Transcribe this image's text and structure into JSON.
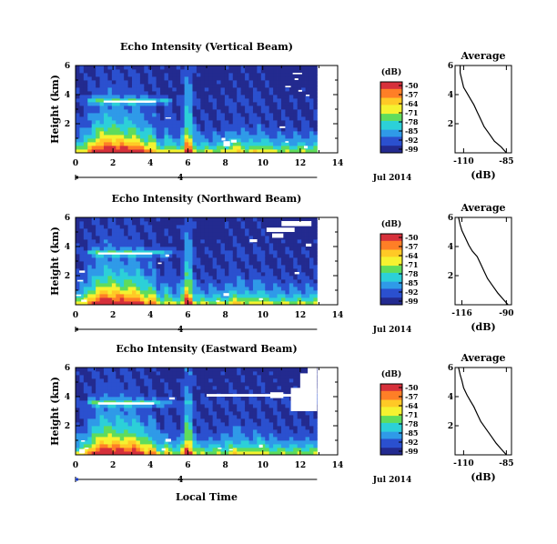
{
  "chart_data": {
    "type": "heatmap",
    "date_label": "Jul 2014",
    "date_day": "4",
    "shared_xlabel": "Local Time",
    "colorbar": {
      "unit": "(dB)",
      "ticks": [
        "-50",
        "-57",
        "-64",
        "-71",
        "-78",
        "-85",
        "-92",
        "-99"
      ],
      "colors": [
        "#d6303b",
        "#ff7f27",
        "#ffc926",
        "#f5f230",
        "#5fdc5c",
        "#2cd0d8",
        "#2f9ae8",
        "#2b50cf",
        "#232a8f"
      ]
    },
    "panels": [
      {
        "title": "Echo Intensity (Vertical Beam)",
        "ylabel": "Height (km)",
        "xlim": [
          0,
          14
        ],
        "ylim": [
          0,
          6
        ],
        "x_ticks": [
          "0",
          "2",
          "4",
          "6",
          "8",
          "10",
          "12",
          "14"
        ],
        "y_ticks": [
          "6",
          "4",
          "2"
        ],
        "average": {
          "title": "Average",
          "xlabel": "(dB)",
          "x_ticks": [
            "-110",
            "-85"
          ],
          "xlim": [
            -115,
            -82
          ],
          "y_ticks": [
            "6",
            "4",
            "2"
          ],
          "profile": [
            [
              -85,
              0.0
            ],
            [
              -88,
              0.4
            ],
            [
              -92,
              0.8
            ],
            [
              -95,
              1.3
            ],
            [
              -98,
              1.8
            ],
            [
              -100,
              2.3
            ],
            [
              -102,
              2.8
            ],
            [
              -104,
              3.3
            ],
            [
              -106,
              3.7
            ],
            [
              -108,
              4.1
            ],
            [
              -110,
              4.5
            ],
            [
              -111,
              5.0
            ],
            [
              -112,
              5.5
            ],
            [
              -112,
              6.0
            ]
          ]
        }
      },
      {
        "title": "Echo Intensity (Northward Beam)",
        "ylabel": "Height (km)",
        "xlim": [
          0,
          14
        ],
        "ylim": [
          0,
          6
        ],
        "x_ticks": [
          "0",
          "2",
          "4",
          "6",
          "8",
          "10",
          "12",
          "14"
        ],
        "y_ticks": [
          "6",
          "4",
          "2"
        ],
        "average": {
          "title": "Average",
          "xlabel": "(dB)",
          "x_ticks": [
            "-116",
            "-90"
          ],
          "xlim": [
            -120,
            -87
          ],
          "y_ticks": [
            "6",
            "4",
            "2"
          ],
          "profile": [
            [
              -89,
              0.0
            ],
            [
              -92,
              0.4
            ],
            [
              -95,
              0.8
            ],
            [
              -98,
              1.3
            ],
            [
              -101,
              1.8
            ],
            [
              -103,
              2.3
            ],
            [
              -105,
              2.8
            ],
            [
              -107,
              3.3
            ],
            [
              -110,
              3.7
            ],
            [
              -112,
              4.1
            ],
            [
              -114,
              4.6
            ],
            [
              -116,
              5.1
            ],
            [
              -117,
              5.5
            ],
            [
              -118,
              6.0
            ]
          ]
        }
      },
      {
        "title": "Echo Intensity (Eastward Beam)",
        "ylabel": "Height (km)",
        "xlim": [
          0,
          14
        ],
        "ylim": [
          0,
          6
        ],
        "x_ticks": [
          "0",
          "2",
          "4",
          "6",
          "8",
          "10",
          "12",
          "14"
        ],
        "y_ticks": [
          "6",
          "4",
          "2"
        ],
        "average": {
          "title": "Average",
          "xlabel": "(dB)",
          "x_ticks": [
            "-110",
            "-85"
          ],
          "xlim": [
            -115,
            -82
          ],
          "y_ticks": [
            "6",
            "4",
            "2"
          ],
          "profile": [
            [
              -85,
              0.0
            ],
            [
              -88,
              0.4
            ],
            [
              -91,
              0.8
            ],
            [
              -94,
              1.3
            ],
            [
              -97,
              1.8
            ],
            [
              -100,
              2.3
            ],
            [
              -102,
              2.8
            ],
            [
              -104,
              3.3
            ],
            [
              -106,
              3.7
            ],
            [
              -108,
              4.1
            ],
            [
              -110,
              4.6
            ],
            [
              -111,
              5.1
            ],
            [
              -112,
              5.5
            ],
            [
              -113,
              6.0
            ]
          ]
        }
      }
    ]
  }
}
